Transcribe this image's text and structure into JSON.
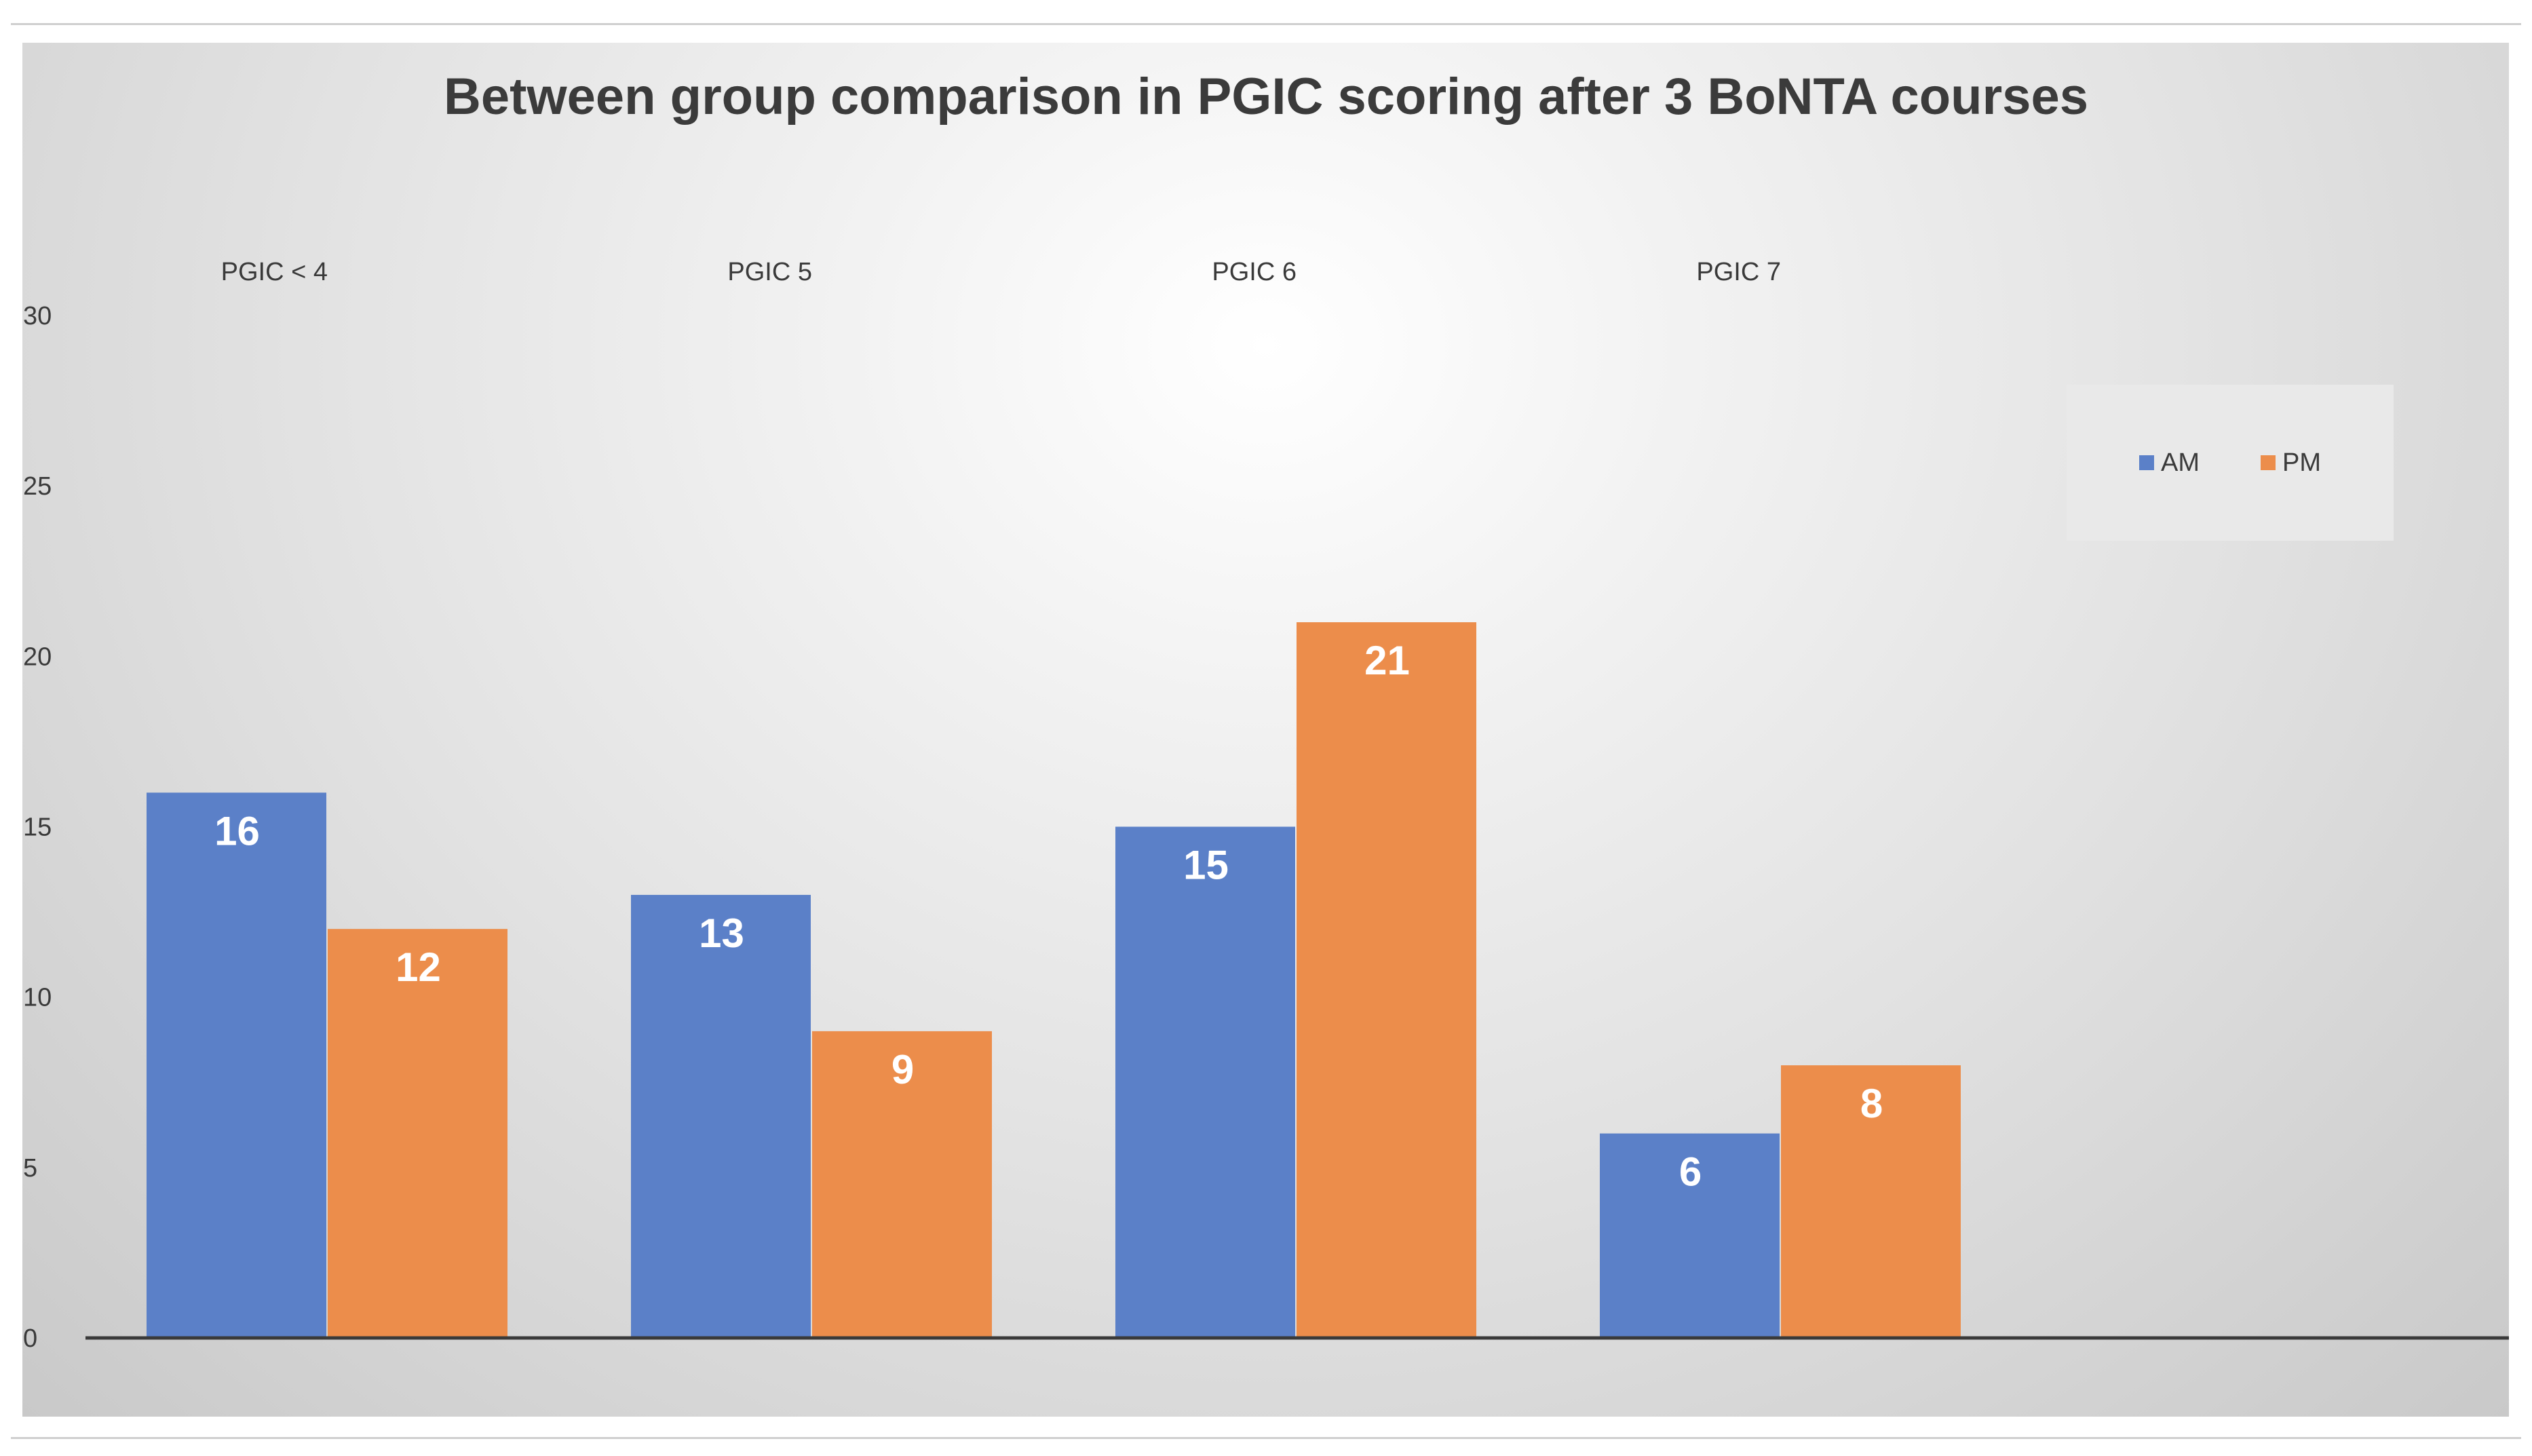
{
  "chart_data": {
    "type": "bar",
    "title": "Between group comparison in PGIC scoring after 3 BoNTA courses",
    "categories": [
      "PGIC < 4",
      "PGIC 5",
      "PGIC 6",
      "PGIC 7"
    ],
    "series": [
      {
        "name": "AM",
        "values": [
          16,
          13,
          15,
          6
        ],
        "color": "#5b80c8"
      },
      {
        "name": "PM",
        "values": [
          12,
          9,
          21,
          8
        ],
        "color": "#ec8d4b"
      }
    ],
    "ylim": [
      0,
      30
    ],
    "yticks": [
      0,
      5,
      10,
      15,
      20,
      25,
      30
    ],
    "category_labels_position": "top",
    "legend_position": "top-right",
    "data_labels": "inside-end",
    "grid": false
  }
}
